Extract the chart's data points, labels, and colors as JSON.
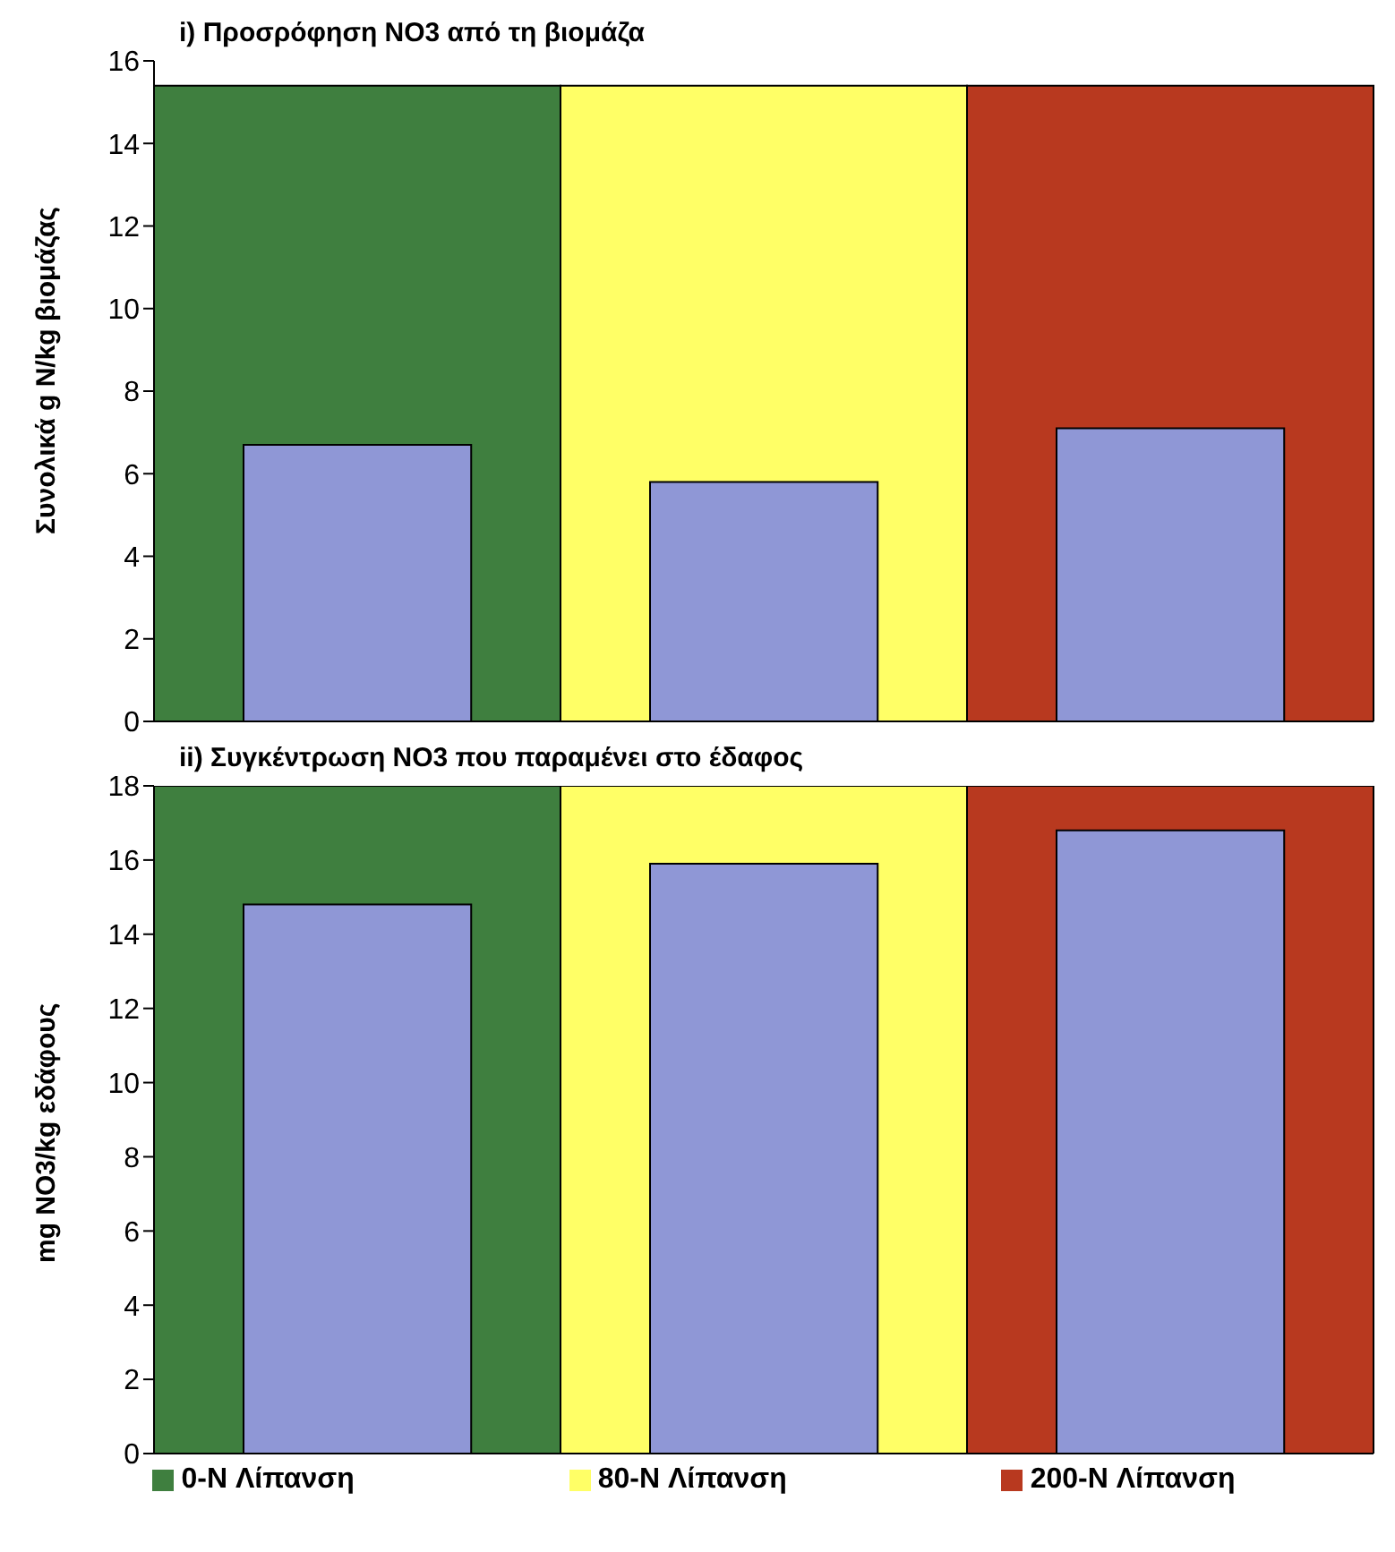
{
  "chart_data": [
    {
      "type": "bar",
      "title": "i) Προσρόφηση NO3 από τη βιομάζα",
      "ylabel": "Συνολικά g N/kg βιομάζας",
      "categories": [
        null,
        null,
        null
      ],
      "series": [
        {
          "color": "#3f7f3f",
          "values": [
            15.4,
            null,
            null
          ]
        },
        {
          "color": "#ffff66",
          "values": [
            null,
            15.4,
            null
          ]
        },
        {
          "color": "#b8391f",
          "values": [
            null,
            null,
            15.4
          ]
        },
        {
          "color": "#8f97d6",
          "values": [
            6.7,
            5.8,
            7.1
          ]
        }
      ],
      "ylim": [
        0,
        16
      ],
      "yticks": [
        0,
        2,
        4,
        6,
        8,
        10,
        12,
        14,
        16
      ],
      "grid": false,
      "legend": false,
      "tick_labels": "y"
    },
    {
      "type": "bar",
      "title": "ii) Συγκέντρωση NO3 που παραμένει στο έδαφος",
      "ylabel": "mg NO3/kg εδάφους",
      "categories": [
        null,
        null,
        null
      ],
      "series": [
        {
          "name": "0-N Λίπανση",
          "color": "#3f7f3f",
          "values": [
            18,
            null,
            null
          ]
        },
        {
          "name": "80-N Λίπανση",
          "color": "#ffff66",
          "values": [
            null,
            18,
            null
          ]
        },
        {
          "name": "200-N Λίπανση",
          "color": "#b8391f",
          "values": [
            null,
            null,
            18
          ]
        },
        {
          "color": "#8f97d6",
          "values": [
            14.8,
            15.9,
            16.8
          ]
        }
      ],
      "ylim": [
        0,
        18
      ],
      "yticks": [
        0,
        2,
        4,
        6,
        8,
        10,
        12,
        14,
        16,
        18
      ],
      "grid": false,
      "legend": "bottom",
      "tick_labels": "y"
    }
  ]
}
